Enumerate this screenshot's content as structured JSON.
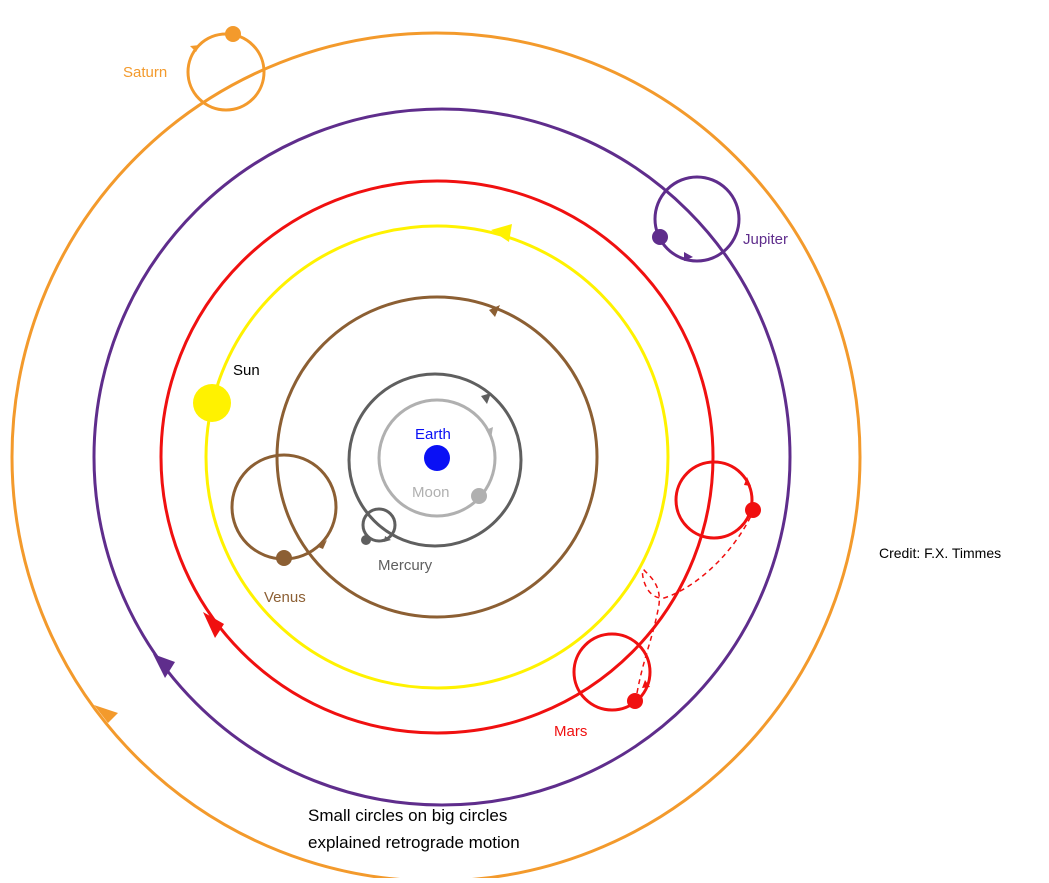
{
  "labels": {
    "saturn": "Saturn",
    "jupiter": "Jupiter",
    "sun": "Sun",
    "earth": "Earth",
    "moon": "Moon",
    "mercury": "Mercury",
    "venus": "Venus",
    "mars": "Mars",
    "credit": "Credit: F.X. Timmes",
    "caption_line1": "Small circles on big circles",
    "caption_line2": "explained retrograde motion"
  },
  "colors": {
    "saturn": "#f39a2c",
    "jupiter": "#5f2d8c",
    "mars": "#f01010",
    "sun": "#fff200",
    "venus": "#8c5f33",
    "mercury": "#5f5f5f",
    "moon": "#b0b0b0",
    "earth": "#0a10f5",
    "text": "#000000"
  }
}
